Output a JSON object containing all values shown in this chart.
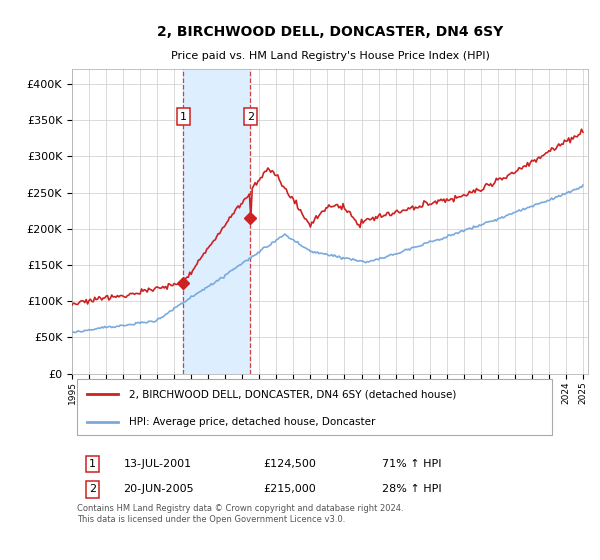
{
  "title": "2, BIRCHWOOD DELL, DONCASTER, DN4 6SY",
  "subtitle": "Price paid vs. HM Land Registry's House Price Index (HPI)",
  "ylim": [
    0,
    420000
  ],
  "yticks": [
    0,
    50000,
    100000,
    150000,
    200000,
    250000,
    300000,
    350000,
    400000
  ],
  "ytick_labels": [
    "£0",
    "£50K",
    "£100K",
    "£150K",
    "£200K",
    "£250K",
    "£300K",
    "£350K",
    "£400K"
  ],
  "sale1_date": 2001.53,
  "sale1_price": 124500,
  "sale1_label": "1",
  "sale1_date_str": "13-JUL-2001",
  "sale1_price_str": "£124,500",
  "sale1_pct": "71% ↑ HPI",
  "sale2_date": 2005.47,
  "sale2_price": 215000,
  "sale2_label": "2",
  "sale2_date_str": "20-JUN-2005",
  "sale2_price_str": "£215,000",
  "sale2_pct": "28% ↑ HPI",
  "hpi_color": "#7aaadd",
  "price_color": "#cc2222",
  "shade_color": "#ddeeff",
  "legend1": "2, BIRCHWOOD DELL, DONCASTER, DN4 6SY (detached house)",
  "legend2": "HPI: Average price, detached house, Doncaster",
  "footnote": "Contains HM Land Registry data © Crown copyright and database right 2024.\nThis data is licensed under the Open Government Licence v3.0.",
  "background_color": "#ffffff",
  "grid_color": "#cccccc"
}
